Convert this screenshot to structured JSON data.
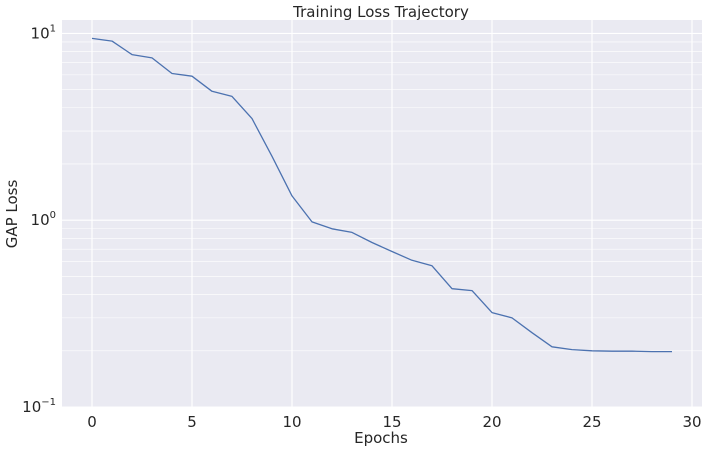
{
  "chart_data": {
    "type": "line",
    "title": "Training Loss Trajectory",
    "xlabel": "Epochs",
    "ylabel": "GAP Loss",
    "yscale": "log",
    "xlim": [
      -1.5,
      30.5
    ],
    "ylim": [
      0.1,
      11.8
    ],
    "x_ticks": [
      0,
      5,
      10,
      15,
      20,
      25,
      30
    ],
    "y_ticks": [
      {
        "value": 10,
        "base": "10",
        "exp": "1"
      },
      {
        "value": 1,
        "base": "10",
        "exp": "0"
      },
      {
        "value": 0.1,
        "base": "10",
        "exp": "−1"
      }
    ],
    "grid": true,
    "background_color": "#eaeaf2",
    "grid_color": "#ffffff",
    "series": [
      {
        "color": "#4c72b0",
        "x": [
          0,
          1,
          2,
          3,
          4,
          5,
          6,
          7,
          8,
          9,
          10,
          11,
          12,
          13,
          14,
          15,
          16,
          17,
          18,
          19,
          20,
          21,
          22,
          23,
          24,
          25,
          26,
          27,
          28,
          29
        ],
        "y": [
          9.4,
          9.1,
          7.7,
          7.4,
          6.1,
          5.9,
          4.9,
          4.6,
          3.5,
          2.2,
          1.35,
          0.98,
          0.9,
          0.86,
          0.76,
          0.68,
          0.61,
          0.57,
          0.43,
          0.42,
          0.32,
          0.3,
          0.25,
          0.21,
          0.203,
          0.2,
          0.199,
          0.199,
          0.198,
          0.198
        ]
      }
    ]
  }
}
